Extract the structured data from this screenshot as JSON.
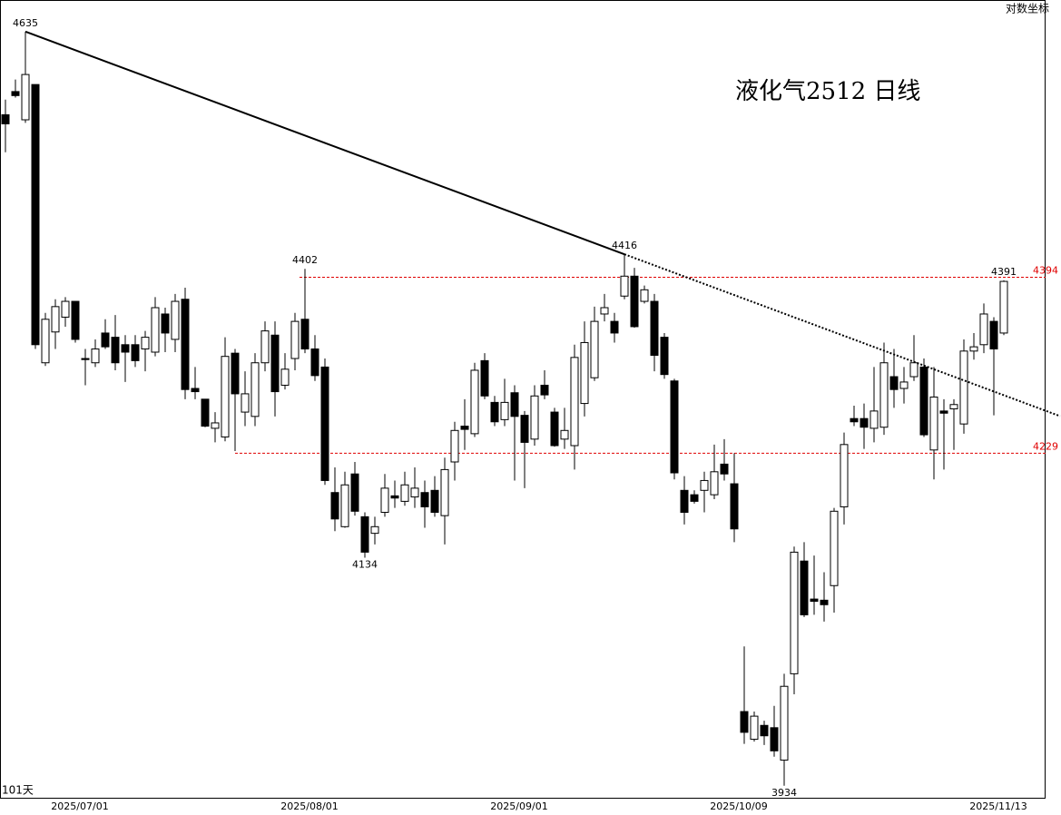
{
  "chart_data": {
    "type": "candlestick",
    "title": "液化气2512 日线",
    "bar_count_label": "101天",
    "scale_label": "对数坐标",
    "log_scale": true,
    "ylim": [
      3923,
      4667
    ],
    "up_color": "#ffffff",
    "down_color": "#000000",
    "edge_color": "#000000",
    "trendline_color": "#000000",
    "categories": [
      null,
      null,
      null,
      null,
      null,
      null,
      null,
      "2025/07/01",
      null,
      null,
      null,
      null,
      null,
      null,
      null,
      null,
      null,
      null,
      null,
      null,
      null,
      null,
      null,
      null,
      null,
      null,
      null,
      null,
      null,
      null,
      "2025/08/01",
      null,
      null,
      null,
      null,
      null,
      null,
      null,
      null,
      null,
      null,
      null,
      null,
      null,
      null,
      null,
      null,
      null,
      null,
      null,
      null,
      "2025/09/01",
      null,
      null,
      null,
      null,
      null,
      null,
      null,
      null,
      null,
      null,
      null,
      null,
      null,
      null,
      null,
      null,
      null,
      null,
      null,
      null,
      null,
      "2025/10/09",
      null,
      null,
      null,
      null,
      null,
      null,
      null,
      null,
      null,
      null,
      null,
      null,
      null,
      null,
      null,
      null,
      null,
      null,
      null,
      null,
      null,
      null,
      null,
      null,
      null,
      "2025/11/13",
      null
    ],
    "open": [
      4552,
      4575,
      4547,
      4582,
      4313,
      4342,
      4356,
      4371,
      4317,
      4313,
      4341,
      4337,
      4330,
      4330,
      4326,
      4323,
      4359,
      4335,
      4373,
      4289,
      4279,
      4252,
      4244,
      4322,
      4267,
      4263,
      4313,
      4339,
      4292,
      4317,
      4354,
      4326,
      4309,
      4193,
      4162,
      4210,
      4171,
      4156,
      4175,
      4190,
      4185,
      4189,
      4193,
      4195,
      4172,
      4221,
      4254,
      4247,
      4315,
      4276,
      4260,
      4285,
      4264,
      4242,
      4292,
      4267,
      4242,
      4236,
      4275,
      4299,
      4359,
      4352,
      4376,
      4395,
      4371,
      4371,
      4337,
      4296,
      4195,
      4191,
      4195,
      4191,
      4219,
      4201,
      3998,
      3974,
      3986,
      3984,
      3956,
      4031,
      4131,
      4097,
      4096,
      4109,
      4180,
      4261,
      4261,
      4252,
      4253,
      4300,
      4289,
      4300,
      4309,
      4232,
      4268,
      4270,
      4256,
      4324,
      4330,
      4352,
      4341
    ],
    "high": [
      4567,
      4587,
      4635,
      4582,
      4360,
      4373,
      4375,
      4371,
      4326,
      4335,
      4354,
      4358,
      4339,
      4339,
      4343,
      4375,
      4365,
      4378,
      4384,
      4309,
      4279,
      4267,
      4337,
      4326,
      4305,
      4322,
      4352,
      4352,
      4322,
      4360,
      4402,
      4339,
      4317,
      4216,
      4212,
      4221,
      4175,
      4171,
      4210,
      4204,
      4212,
      4216,
      4204,
      4208,
      4225,
      4258,
      4279,
      4313,
      4322,
      4282,
      4298,
      4292,
      4268,
      4292,
      4306,
      4271,
      4271,
      4330,
      4352,
      4366,
      4378,
      4360,
      4416,
      4403,
      4386,
      4378,
      4341,
      4298,
      4208,
      4195,
      4212,
      4237,
      4242,
      4229,
      4055,
      3998,
      3990,
      4003,
      4031,
      4144,
      4148,
      4136,
      4121,
      4179,
      4248,
      4273,
      4275,
      4309,
      4332,
      4326,
      4309,
      4339,
      4317,
      4309,
      4279,
      4279,
      4335,
      4341,
      4369,
      4356,
      4391
    ],
    "low": [
      4515,
      4569,
      4544,
      4326,
      4310,
      4326,
      4347,
      4332,
      4292,
      4309,
      4326,
      4306,
      4295,
      4309,
      4305,
      4319,
      4323,
      4323,
      4279,
      4279,
      4253,
      4239,
      4240,
      4231,
      4254,
      4254,
      4305,
      4263,
      4288,
      4306,
      4322,
      4296,
      4200,
      4158,
      4161,
      4172,
      4134,
      4146,
      4171,
      4179,
      4181,
      4179,
      4161,
      4171,
      4146,
      4204,
      4232,
      4244,
      4279,
      4254,
      4254,
      4204,
      4197,
      4236,
      4279,
      4235,
      4233,
      4214,
      4263,
      4296,
      4352,
      4332,
      4373,
      4346,
      4369,
      4305,
      4298,
      4205,
      4164,
      4183,
      4175,
      4187,
      4204,
      4148,
      3970,
      3972,
      3969,
      3959,
      3934,
      4013,
      4081,
      4083,
      4077,
      4085,
      4164,
      4254,
      4233,
      4239,
      4246,
      4271,
      4275,
      4296,
      4244,
      4205,
      4214,
      4232,
      4247,
      4316,
      4322,
      4264,
      4339
    ],
    "close": [
      4543,
      4571,
      4592,
      4330,
      4354,
      4366,
      4371,
      4335,
      4316,
      4326,
      4328,
      4313,
      4323,
      4315,
      4337,
      4365,
      4341,
      4371,
      4288,
      4286,
      4254,
      4257,
      4319,
      4284,
      4284,
      4313,
      4343,
      4286,
      4307,
      4352,
      4326,
      4301,
      4204,
      4169,
      4200,
      4176,
      4139,
      4162,
      4197,
      4188,
      4200,
      4197,
      4180,
      4175,
      4214,
      4250,
      4251,
      4306,
      4282,
      4258,
      4276,
      4263,
      4239,
      4282,
      4283,
      4236,
      4250,
      4318,
      4332,
      4352,
      4365,
      4341,
      4395,
      4347,
      4382,
      4320,
      4302,
      4211,
      4175,
      4185,
      4204,
      4212,
      4210,
      4160,
      3980,
      3994,
      3977,
      3964,
      4020,
      4139,
      4083,
      4095,
      4092,
      4176,
      4237,
      4258,
      4253,
      4268,
      4313,
      4288,
      4295,
      4313,
      4246,
      4281,
      4266,
      4274,
      4324,
      4328,
      4359,
      4326,
      4390
    ],
    "reference_lines": [
      {
        "value": 4394,
        "color": "#e00000"
      },
      {
        "value": 4229,
        "color": "#e00000"
      }
    ]
  }
}
